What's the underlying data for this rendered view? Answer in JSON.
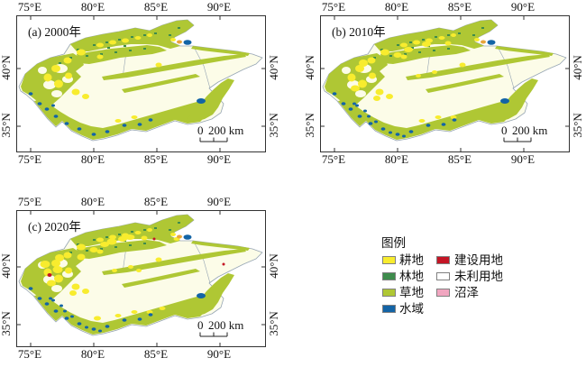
{
  "panels": [
    {
      "label": "(a) 2000年"
    },
    {
      "label": "(b) 2010年"
    },
    {
      "label": "(c) 2020年"
    }
  ],
  "axes": {
    "x_ticks": [
      "75°E",
      "80°E",
      "85°E",
      "90°E"
    ],
    "y_ticks": [
      "40°N",
      "35°N"
    ]
  },
  "scale_bar_label": "0 200 km",
  "legend": {
    "title": "图例",
    "items": [
      {
        "label": "耕地",
        "color": "#F8EC2E"
      },
      {
        "label": "林地",
        "color": "#3E8C4C"
      },
      {
        "label": "草地",
        "color": "#AFC734"
      },
      {
        "label": "水域",
        "color": "#1364A6"
      },
      {
        "label": "建设用地",
        "color": "#C41525"
      },
      {
        "label": "未利用地",
        "color": "#FFFFFF"
      },
      {
        "label": "沼泽",
        "color": "#F1A6C0"
      }
    ]
  },
  "colors": {
    "unused_land_fill": "#FCFCE8",
    "region_boundary": "#96A5B3",
    "frame": "#333333"
  }
}
